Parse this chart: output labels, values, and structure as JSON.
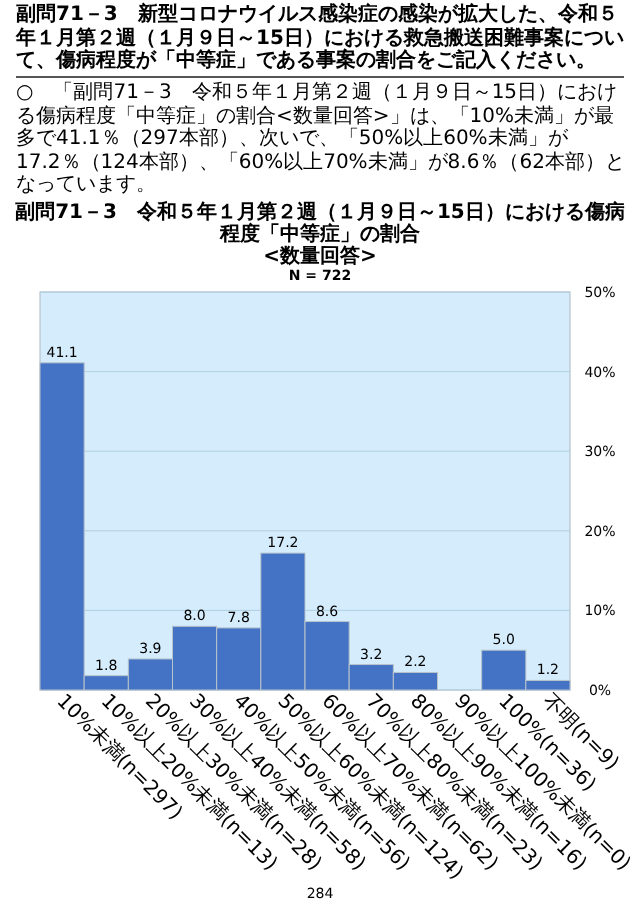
{
  "chart_data": {
    "type": "bar",
    "title": "副問71－3　令和５年１月第２週（１月９日～15日）における傷病程度「中等症」の割合",
    "subtitle": "<数量回答>",
    "annotations": [
      "副問71－3　新型コロナウイルス感染症の感染が拡大した、令和５年１月第２週（１月９日～15日）における救急搬送困難事案について、傷病程度が「中等症」である事案の割合をご記入ください。",
      "○　「副問71－3　令和５年１月第２週（１月９日～15日）における傷病程度「中等症」の割合<数量回答>」は、「10%未満」が最多で41.1％（297本部）、次いで、「50%以上60%未満」が17.2％（124本部）、「60%以上70%未満」が8.6％（62本部）となっています。",
      "N = 722",
      "284"
    ],
    "categories": [
      "10%未満(n=297)",
      "10%以上20%未満(n=13)",
      "20%以上30%未満(n=28)",
      "30%以上40%未満(n=58)",
      "40%以上50%未満(n=56)",
      "50%以上60%未満(n=124)",
      "60%以上70%未満(n=62)",
      "70%以上80%未満(n=23)",
      "80%以上90%未満(n=16)",
      "90%以上100%未満(n=0)",
      "100%(n=36)",
      "不明(n=9)"
    ],
    "values": [
      41.1,
      1.8,
      3.9,
      8.0,
      7.8,
      17.2,
      8.6,
      3.2,
      2.2,
      0,
      5.0,
      1.2
    ],
    "value_labels": [
      "41.1",
      "1.8",
      "3.9",
      "8.0",
      "7.8",
      "17.2",
      "8.6",
      "3.2",
      "2.2",
      null,
      "5.0",
      "1.2"
    ],
    "color": "#4472c4",
    "ylim": [
      0,
      50
    ],
    "yticks": [
      {
        "value": 0,
        "label": "0%"
      },
      {
        "value": 10,
        "label": "10%"
      },
      {
        "value": 20,
        "label": "20%"
      },
      {
        "value": 30,
        "label": "30%"
      },
      {
        "value": 40,
        "label": "40%"
      },
      {
        "value": 50,
        "label": "50%"
      }
    ],
    "grid": "y"
  }
}
